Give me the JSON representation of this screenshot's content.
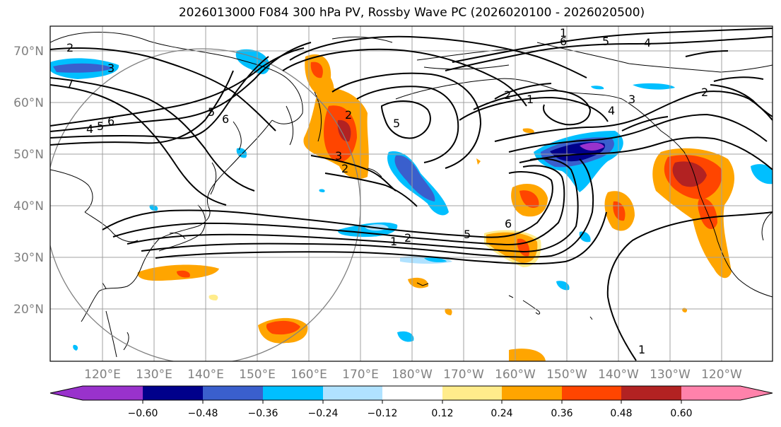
{
  "title": "2026013000 F084 300 hPa PV, Rossby Wave PC (2026020100 - 2026020500)",
  "latitude_labels": [
    "70°N",
    "60°N",
    "50°N",
    "40°N",
    "30°N",
    "20°N"
  ],
  "longitude_labels": [
    "120°E",
    "130°E",
    "140°E",
    "150°E",
    "160°E",
    "170°E",
    "180°W",
    "170°W",
    "160°W",
    "150°W",
    "140°W",
    "130°W",
    "120°W"
  ],
  "contour_labels": [
    "2",
    "7",
    "3",
    "4",
    "5",
    "6",
    "5",
    "6",
    "2",
    "3",
    "2",
    "5",
    "6",
    "5",
    "4",
    "1",
    "2",
    "1",
    "3",
    "4",
    "2",
    "1",
    "2",
    "5",
    "6",
    "1"
  ],
  "colorbar": {
    "ticks": [
      "−0.60",
      "−0.48",
      "−0.36",
      "−0.24",
      "−0.12",
      "0.12",
      "0.24",
      "0.36",
      "0.48",
      "0.60"
    ],
    "colors": [
      "#9932cc",
      "#00008b",
      "#3a5fcd",
      "#00bfff",
      "#b0e2ff",
      "#ffffff",
      "#ffec8b",
      "#ffa500",
      "#ff4500",
      "#b22222",
      "#ff82ab"
    ]
  },
  "colors": {
    "purple": "#9932cc",
    "navy": "#00008b",
    "royal": "#3a5fcd",
    "sky": "#00bfff",
    "light_blue": "#b0e2ff",
    "yellow": "#ffec8b",
    "orange": "#ffa500",
    "red_orange": "#ff4500",
    "firebrick": "#b22222",
    "pink": "#ff82ab",
    "grid": "#a0a0a0",
    "axis_label": "#808080"
  }
}
